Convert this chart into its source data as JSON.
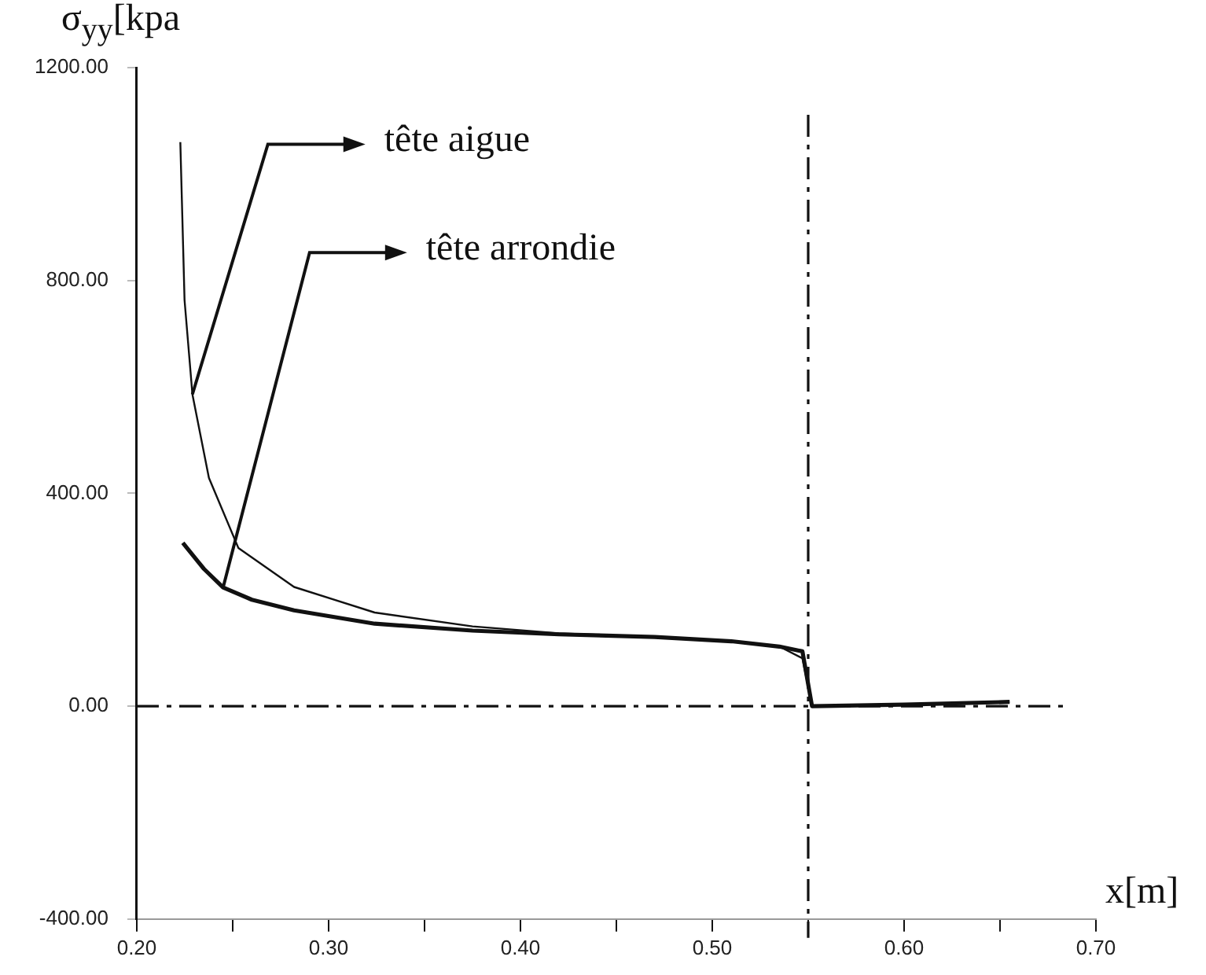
{
  "chart_data": {
    "type": "line",
    "ylabel": "σ$_{yy}$[kpa",
    "xlabel": "x[m]",
    "series": [
      {
        "color": "#111111",
        "x": [
          0.2227,
          0.2249,
          0.229,
          0.2376,
          0.253,
          0.282,
          0.324,
          0.375,
          0.42,
          0.47,
          0.51,
          0.535,
          0.547,
          0.552,
          0.6,
          0.655
        ],
        "values": [
          1060,
          763,
          586,
          429,
          297,
          224,
          176,
          150,
          137,
          130,
          122,
          112,
          90,
          0,
          3,
          8
        ]
      },
      {
        "color": "#111111",
        "x": [
          0.224,
          0.235,
          0.245,
          0.26,
          0.282,
          0.324,
          0.375,
          0.42,
          0.47,
          0.51,
          0.535,
          0.547,
          0.552,
          0.6,
          0.655
        ],
        "values": [
          307,
          258,
          223,
          200,
          180,
          155,
          142,
          135,
          130,
          122,
          112,
          103,
          0,
          3,
          8
        ]
      }
    ],
    "xlim": [
      0.2,
      0.7
    ],
    "xticks": [
      {
        "value": 0.2,
        "label": "0.20"
      },
      {
        "value": 0.25,
        "label": null
      },
      {
        "value": 0.3,
        "label": "0.30"
      },
      {
        "value": 0.35,
        "label": null
      },
      {
        "value": 0.4,
        "label": "0.40"
      },
      {
        "value": 0.45,
        "label": null
      },
      {
        "value": 0.5,
        "label": "0.50"
      },
      {
        "value": 0.55,
        "label": null
      },
      {
        "value": 0.6,
        "label": "0.60"
      },
      {
        "value": 0.65,
        "label": null
      },
      {
        "value": 0.7,
        "label": "0.70"
      }
    ],
    "ylim": [
      -400,
      1200
    ],
    "yticks": [
      {
        "value": -400,
        "label": "-400.00"
      },
      {
        "value": 0,
        "label": "0.00"
      },
      {
        "value": 400,
        "label": "400.00"
      },
      {
        "value": 800,
        "label": "800.00"
      },
      {
        "value": 1200,
        "label": "1200.00"
      }
    ],
    "ref_lines": [
      {
        "axis": "x",
        "value": 0.55,
        "color": "#111111",
        "line_style": "dashed"
      },
      {
        "axis": "y",
        "value": 0,
        "color": "#111111",
        "line_style": "dashed"
      }
    ],
    "annotations": [
      {
        "text": "tête aigue",
        "x": 0.229,
        "y": 586
      },
      {
        "text": "tête arrondie",
        "x": 0.245,
        "y": 223
      }
    ],
    "grid": false,
    "legend": false,
    "marker": "none"
  }
}
